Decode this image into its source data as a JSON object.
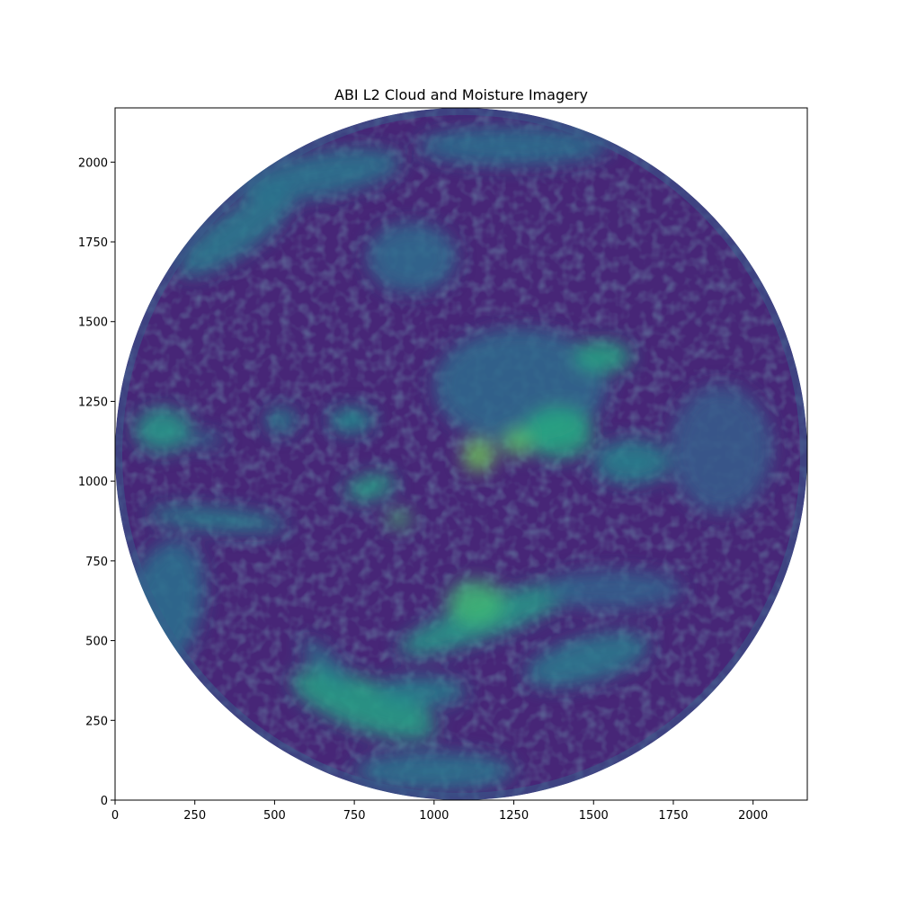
{
  "chart_data": {
    "type": "heatmap",
    "title": "ABI L2 Cloud and Moisture Imagery",
    "xlabel": "",
    "ylabel": "",
    "xlim": [
      0,
      2170
    ],
    "ylim": [
      0,
      2170
    ],
    "x_ticks": [
      0,
      250,
      500,
      750,
      1000,
      1250,
      1500,
      1750,
      2000
    ],
    "y_ticks": [
      0,
      250,
      500,
      750,
      1000,
      1250,
      1500,
      1750,
      2000
    ],
    "colormap": "viridis",
    "colormap_stops": [
      "#440154",
      "#472878",
      "#3b518b",
      "#2c718e",
      "#21908d",
      "#27ad81",
      "#5cc863",
      "#aadc32",
      "#fde725"
    ],
    "image": {
      "description_values": "full-disk Earth image, values shown by viridis color",
      "disk_center": [
        1085,
        1085
      ],
      "disk_radius": 1085,
      "background_value": 0.12,
      "cloud_features": [
        {
          "x": 380,
          "y": 1780,
          "rx": 220,
          "ry": 70,
          "angle": -35,
          "value": 0.42
        },
        {
          "x": 640,
          "y": 1960,
          "rx": 260,
          "ry": 70,
          "angle": -10,
          "value": 0.4
        },
        {
          "x": 1250,
          "y": 2050,
          "rx": 300,
          "ry": 60,
          "angle": 0,
          "value": 0.38
        },
        {
          "x": 930,
          "y": 1700,
          "rx": 140,
          "ry": 110,
          "angle": 0,
          "value": 0.36
        },
        {
          "x": 1270,
          "y": 1300,
          "rx": 270,
          "ry": 180,
          "angle": 0,
          "value": 0.35
        },
        {
          "x": 1390,
          "y": 1150,
          "rx": 110,
          "ry": 80,
          "angle": 0,
          "value": 0.62
        },
        {
          "x": 1530,
          "y": 1390,
          "rx": 90,
          "ry": 50,
          "angle": 0,
          "value": 0.6
        },
        {
          "x": 1140,
          "y": 1080,
          "rx": 50,
          "ry": 50,
          "angle": 0,
          "value": 0.78
        },
        {
          "x": 1260,
          "y": 1120,
          "rx": 45,
          "ry": 40,
          "angle": 0,
          "value": 0.75
        },
        {
          "x": 1620,
          "y": 1060,
          "rx": 120,
          "ry": 70,
          "angle": 0,
          "value": 0.45
        },
        {
          "x": 150,
          "y": 1160,
          "rx": 90,
          "ry": 70,
          "angle": 0,
          "value": 0.55
        },
        {
          "x": 280,
          "y": 1130,
          "rx": 60,
          "ry": 20,
          "angle": 0,
          "value": 0.4
        },
        {
          "x": 520,
          "y": 1190,
          "rx": 50,
          "ry": 40,
          "angle": 0,
          "value": 0.45
        },
        {
          "x": 740,
          "y": 1190,
          "rx": 70,
          "ry": 40,
          "angle": 0,
          "value": 0.5
        },
        {
          "x": 800,
          "y": 980,
          "rx": 80,
          "ry": 40,
          "angle": -15,
          "value": 0.58
        },
        {
          "x": 890,
          "y": 880,
          "rx": 40,
          "ry": 25,
          "angle": 0,
          "value": 0.7
        },
        {
          "x": 320,
          "y": 880,
          "rx": 220,
          "ry": 35,
          "angle": 5,
          "value": 0.45
        },
        {
          "x": 1170,
          "y": 570,
          "rx": 300,
          "ry": 60,
          "angle": -20,
          "value": 0.55
        },
        {
          "x": 1130,
          "y": 620,
          "rx": 90,
          "ry": 70,
          "angle": 0,
          "value": 0.68
        },
        {
          "x": 1480,
          "y": 440,
          "rx": 200,
          "ry": 70,
          "angle": -15,
          "value": 0.42
        },
        {
          "x": 780,
          "y": 300,
          "rx": 240,
          "ry": 80,
          "angle": 20,
          "value": 0.58
        },
        {
          "x": 960,
          "y": 340,
          "rx": 140,
          "ry": 45,
          "angle": 0,
          "value": 0.45
        },
        {
          "x": 660,
          "y": 430,
          "rx": 100,
          "ry": 30,
          "angle": 45,
          "value": 0.42
        },
        {
          "x": 1560,
          "y": 660,
          "rx": 220,
          "ry": 60,
          "angle": 0,
          "value": 0.32
        },
        {
          "x": 1900,
          "y": 1100,
          "rx": 160,
          "ry": 200,
          "angle": 0,
          "value": 0.3
        },
        {
          "x": 150,
          "y": 600,
          "rx": 120,
          "ry": 220,
          "angle": 15,
          "value": 0.38
        },
        {
          "x": 1000,
          "y": 90,
          "rx": 250,
          "ry": 60,
          "angle": 0,
          "value": 0.4
        }
      ]
    }
  }
}
